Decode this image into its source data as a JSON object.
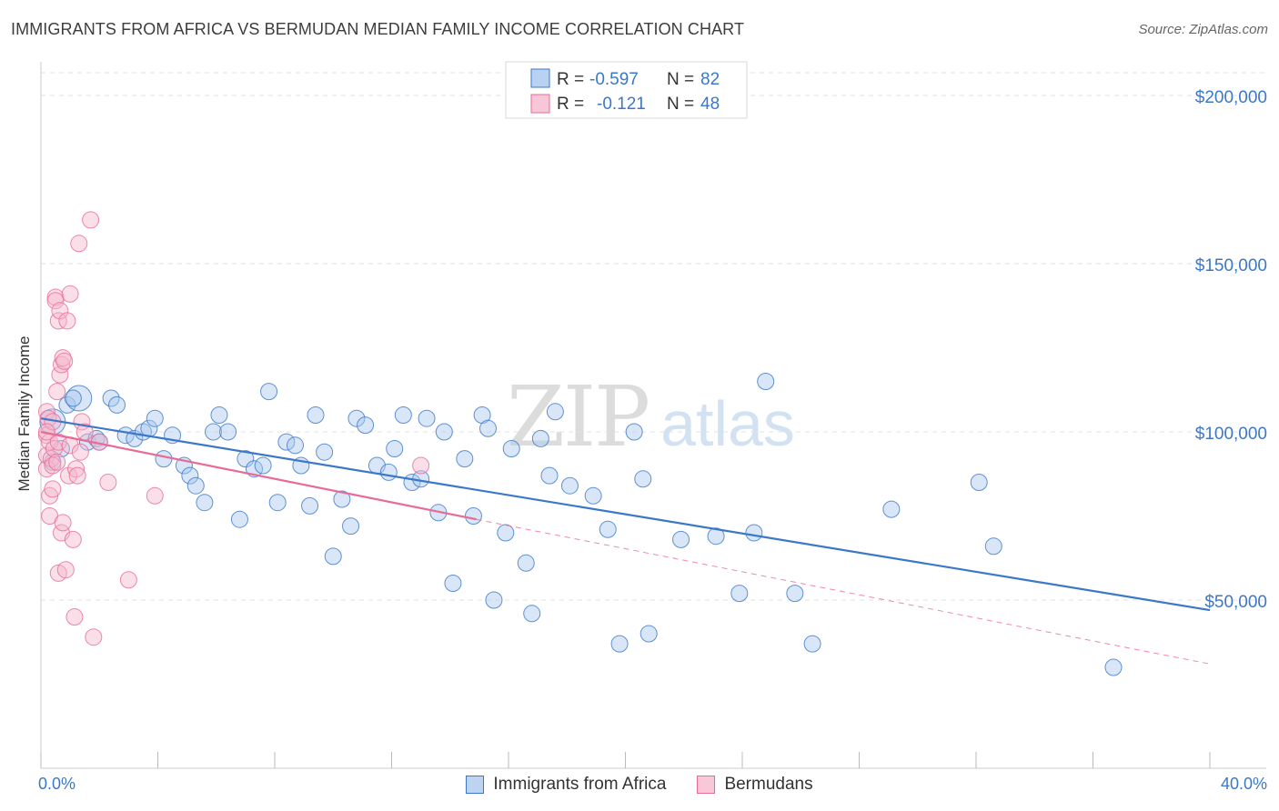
{
  "header": {
    "title": "IMMIGRANTS FROM AFRICA VS BERMUDAN MEDIAN FAMILY INCOME CORRELATION CHART",
    "source": "Source: ZipAtlas.com"
  },
  "chart_data": {
    "type": "scatter",
    "title": "IMMIGRANTS FROM AFRICA VS BERMUDAN MEDIAN FAMILY INCOME CORRELATION CHART",
    "xlabel": "",
    "ylabel": "Median Family Income",
    "xlim": [
      0,
      40
    ],
    "ylim": [
      0,
      210000
    ],
    "x_tick_labels": [
      "0.0%",
      "40.0%"
    ],
    "y_ticks": [
      50000,
      100000,
      150000,
      200000
    ],
    "y_tick_labels": [
      "$50,000",
      "$100,000",
      "$150,000",
      "$200,000"
    ],
    "grid": "horizontal dashed",
    "legend_position": "top-center",
    "watermark": {
      "zip": "ZIP",
      "atlas": "atlas"
    },
    "colors": {
      "africa": "#3b78c9",
      "africa_fill": "#a9c7ee",
      "bermudans": "#e86b97",
      "bermudans_fill": "#f5b8cd"
    },
    "series": [
      {
        "name": "Immigrants from Africa",
        "R": "-0.597",
        "N": "82",
        "r_label": "R =",
        "n_label": "N =",
        "trend": {
          "x": [
            0,
            40
          ],
          "y": [
            104000,
            47000
          ]
        },
        "points": [
          [
            0.4,
            103000
          ],
          [
            0.4,
            91000
          ],
          [
            0.9,
            108000
          ],
          [
            1.3,
            110000
          ],
          [
            1.6,
            97000
          ],
          [
            1.9,
            98000
          ],
          [
            2.4,
            110000
          ],
          [
            2.6,
            108000
          ],
          [
            2.9,
            99000
          ],
          [
            3.2,
            98000
          ],
          [
            3.5,
            100000
          ],
          [
            3.7,
            101000
          ],
          [
            3.9,
            104000
          ],
          [
            4.2,
            92000
          ],
          [
            4.5,
            99000
          ],
          [
            4.9,
            90000
          ],
          [
            5.1,
            87000
          ],
          [
            5.3,
            84000
          ],
          [
            5.6,
            79000
          ],
          [
            5.9,
            100000
          ],
          [
            6.1,
            105000
          ],
          [
            6.4,
            100000
          ],
          [
            6.8,
            74000
          ],
          [
            7.0,
            92000
          ],
          [
            7.3,
            89000
          ],
          [
            7.6,
            90000
          ],
          [
            7.8,
            112000
          ],
          [
            8.1,
            79000
          ],
          [
            8.4,
            97000
          ],
          [
            8.7,
            96000
          ],
          [
            8.9,
            90000
          ],
          [
            9.2,
            78000
          ],
          [
            9.4,
            105000
          ],
          [
            9.7,
            94000
          ],
          [
            10.0,
            63000
          ],
          [
            10.3,
            80000
          ],
          [
            10.6,
            72000
          ],
          [
            10.8,
            104000
          ],
          [
            11.1,
            102000
          ],
          [
            11.5,
            90000
          ],
          [
            11.9,
            88000
          ],
          [
            12.1,
            95000
          ],
          [
            12.4,
            105000
          ],
          [
            12.7,
            85000
          ],
          [
            13.0,
            86000
          ],
          [
            13.2,
            104000
          ],
          [
            13.6,
            76000
          ],
          [
            13.8,
            100000
          ],
          [
            14.1,
            55000
          ],
          [
            14.5,
            92000
          ],
          [
            14.8,
            75000
          ],
          [
            15.1,
            105000
          ],
          [
            15.3,
            101000
          ],
          [
            15.5,
            50000
          ],
          [
            15.9,
            70000
          ],
          [
            16.1,
            95000
          ],
          [
            16.6,
            61000
          ],
          [
            16.8,
            46000
          ],
          [
            17.1,
            98000
          ],
          [
            17.4,
            87000
          ],
          [
            17.6,
            106000
          ],
          [
            18.1,
            84000
          ],
          [
            18.9,
            81000
          ],
          [
            19.4,
            71000
          ],
          [
            19.8,
            37000
          ],
          [
            20.3,
            100000
          ],
          [
            20.6,
            86000
          ],
          [
            20.8,
            40000
          ],
          [
            21.9,
            68000
          ],
          [
            23.1,
            69000
          ],
          [
            23.9,
            52000
          ],
          [
            24.4,
            70000
          ],
          [
            24.8,
            115000
          ],
          [
            25.8,
            52000
          ],
          [
            26.4,
            37000
          ],
          [
            29.1,
            77000
          ],
          [
            32.1,
            85000
          ],
          [
            32.6,
            66000
          ],
          [
            36.7,
            30000
          ],
          [
            1.1,
            110000
          ],
          [
            2.0,
            97000
          ],
          [
            0.7,
            95000
          ]
        ]
      },
      {
        "name": "Bermudans",
        "R": "-0.121",
        "N": "48",
        "r_label": "R =",
        "n_label": "N =",
        "trend": {
          "x": [
            0,
            14.9
          ],
          "y": [
            100000,
            74000
          ],
          "dashed_to": {
            "x": 40,
            "y": 31000
          }
        },
        "points": [
          [
            0.2,
            106000
          ],
          [
            0.2,
            99000
          ],
          [
            0.2,
            93000
          ],
          [
            0.2,
            89000
          ],
          [
            0.25,
            104000
          ],
          [
            0.3,
            97000
          ],
          [
            0.3,
            81000
          ],
          [
            0.3,
            75000
          ],
          [
            0.35,
            92000
          ],
          [
            0.4,
            90000
          ],
          [
            0.4,
            83000
          ],
          [
            0.4,
            103000
          ],
          [
            0.45,
            95000
          ],
          [
            0.5,
            140000
          ],
          [
            0.5,
            139000
          ],
          [
            0.55,
            112000
          ],
          [
            0.55,
            91000
          ],
          [
            0.6,
            97000
          ],
          [
            0.6,
            133000
          ],
          [
            0.6,
            58000
          ],
          [
            0.65,
            136000
          ],
          [
            0.65,
            117000
          ],
          [
            0.7,
            70000
          ],
          [
            0.7,
            120000
          ],
          [
            0.75,
            122000
          ],
          [
            0.75,
            73000
          ],
          [
            0.8,
            121000
          ],
          [
            0.85,
            59000
          ],
          [
            0.9,
            133000
          ],
          [
            0.95,
            87000
          ],
          [
            1.0,
            96000
          ],
          [
            1.0,
            141000
          ],
          [
            1.1,
            68000
          ],
          [
            1.15,
            45000
          ],
          [
            1.2,
            89000
          ],
          [
            1.25,
            87000
          ],
          [
            1.3,
            156000
          ],
          [
            1.35,
            94000
          ],
          [
            1.4,
            103000
          ],
          [
            1.5,
            100000
          ],
          [
            1.7,
            163000
          ],
          [
            1.8,
            39000
          ],
          [
            2.0,
            97000
          ],
          [
            2.3,
            85000
          ],
          [
            3.0,
            56000
          ],
          [
            3.9,
            81000
          ],
          [
            13.0,
            90000
          ],
          [
            0.2,
            100000
          ]
        ]
      }
    ]
  },
  "legend": {
    "items": [
      {
        "label": "Immigrants from Africa"
      },
      {
        "label": "Bermudans"
      }
    ]
  }
}
